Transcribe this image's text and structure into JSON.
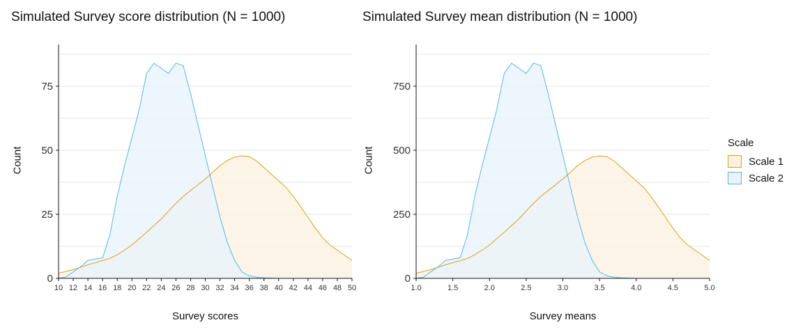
{
  "colors": {
    "scale1_line": "#D4A017",
    "scale1_fill": "#FBF2DF",
    "scale2_line": "#56B4E9",
    "scale2_fill": "#E8F3FC",
    "grid": "#E3E3E3",
    "axis": "#111111"
  },
  "legend": {
    "title": "Scale",
    "items": [
      {
        "label": "Scale 1"
      },
      {
        "label": "Scale 2"
      }
    ]
  },
  "chart_data": [
    {
      "type": "area",
      "title": "Simulated Survey score distribution (N = 1000)",
      "xlabel": "Survey scores",
      "ylabel": "Count",
      "xlim": [
        10,
        50
      ],
      "ylim": [
        0,
        88
      ],
      "x_ticks": [
        10,
        12,
        14,
        16,
        18,
        20,
        22,
        24,
        26,
        28,
        30,
        32,
        34,
        36,
        38,
        40,
        42,
        44,
        46,
        48,
        50
      ],
      "y_ticks": [
        0,
        25,
        50,
        75
      ],
      "grid": true,
      "legend_position": "right",
      "series": [
        {
          "name": "Scale 1",
          "x": [
            10,
            11,
            12,
            13,
            14,
            15,
            16,
            17,
            18,
            19,
            20,
            21,
            22,
            23,
            24,
            25,
            26,
            27,
            28,
            29,
            30,
            31,
            32,
            33,
            34,
            35,
            36,
            37,
            38,
            39,
            40,
            41,
            42,
            43,
            44,
            45,
            46,
            47,
            48,
            49,
            50
          ],
          "y": [
            2,
            2.7,
            3.4,
            4.3,
            5.3,
            6.1,
            6.9,
            7.8,
            9.2,
            11,
            13,
            15.5,
            18,
            20.6,
            23.2,
            26.3,
            29.3,
            32,
            34.3,
            36.5,
            38.8,
            41.3,
            44,
            46,
            47.3,
            47.8,
            47.5,
            45.8,
            43.2,
            40.6,
            38.1,
            35.5,
            32,
            28,
            23.8,
            19.6,
            15.8,
            13,
            11,
            9,
            7
          ]
        },
        {
          "name": "Scale 2",
          "x": [
            10,
            11,
            12,
            13,
            14,
            15,
            16,
            17,
            18,
            19,
            20,
            21,
            22,
            23,
            24,
            25,
            26,
            27,
            28,
            29,
            30,
            31,
            32,
            33,
            34,
            35,
            36,
            37,
            38,
            39,
            40
          ],
          "y": [
            0,
            0.5,
            2.5,
            4.5,
            7,
            7.5,
            8,
            17,
            32,
            44,
            55,
            66,
            80,
            84,
            82,
            80,
            84,
            83,
            72,
            60,
            48,
            36,
            24,
            14,
            7,
            2.5,
            1,
            0.4,
            0.2,
            0.1,
            0
          ]
        }
      ]
    },
    {
      "type": "area",
      "title": "Simulated Survey mean distribution (N = 1000)",
      "xlabel": "Survey means",
      "ylabel": "Count",
      "xlim": [
        1.0,
        5.0
      ],
      "ylim": [
        0,
        880
      ],
      "x_ticks": [
        1.0,
        1.5,
        2.0,
        2.5,
        3.0,
        3.5,
        4.0,
        4.5,
        5.0
      ],
      "y_ticks": [
        0,
        250,
        500,
        750
      ],
      "grid": true,
      "legend_position": "right",
      "series": [
        {
          "name": "Scale 1",
          "x": [
            1.0,
            1.1,
            1.2,
            1.3,
            1.4,
            1.5,
            1.6,
            1.7,
            1.8,
            1.9,
            2.0,
            2.1,
            2.2,
            2.3,
            2.4,
            2.5,
            2.6,
            2.7,
            2.8,
            2.9,
            3.0,
            3.1,
            3.2,
            3.3,
            3.4,
            3.5,
            3.6,
            3.7,
            3.8,
            3.9,
            4.0,
            4.1,
            4.2,
            4.3,
            4.4,
            4.5,
            4.6,
            4.7,
            4.8,
            4.9,
            5.0
          ],
          "y": [
            20,
            27,
            34,
            43,
            53,
            61,
            69,
            78,
            92,
            110,
            130,
            155,
            180,
            206,
            232,
            263,
            293,
            320,
            343,
            365,
            388,
            413,
            440,
            460,
            473,
            478,
            475,
            458,
            432,
            406,
            381,
            355,
            320,
            280,
            238,
            196,
            158,
            130,
            110,
            90,
            70
          ]
        },
        {
          "name": "Scale 2",
          "x": [
            1.0,
            1.1,
            1.2,
            1.3,
            1.4,
            1.5,
            1.6,
            1.7,
            1.8,
            1.9,
            2.0,
            2.1,
            2.2,
            2.3,
            2.4,
            2.5,
            2.6,
            2.7,
            2.8,
            2.9,
            3.0,
            3.1,
            3.2,
            3.3,
            3.4,
            3.5,
            3.6,
            3.7,
            3.8,
            3.9,
            4.0
          ],
          "y": [
            0,
            5,
            25,
            45,
            70,
            75,
            80,
            170,
            320,
            440,
            550,
            660,
            800,
            840,
            820,
            800,
            840,
            830,
            720,
            600,
            480,
            360,
            240,
            140,
            70,
            25,
            10,
            4,
            2,
            1,
            0
          ]
        }
      ]
    }
  ]
}
